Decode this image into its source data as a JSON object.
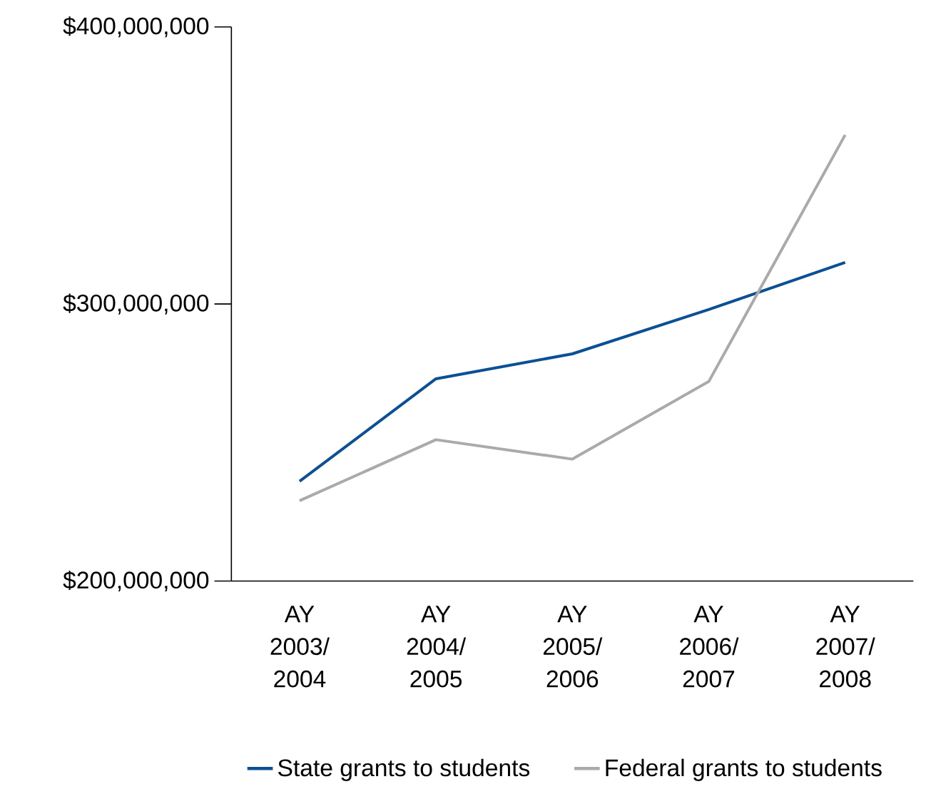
{
  "chart_data": {
    "type": "line",
    "categories": [
      "AY 2003/ 2004",
      "AY 2004/ 2005",
      "AY 2005/ 2006",
      "AY 2006/ 2007",
      "AY 2007/ 2008"
    ],
    "series": [
      {
        "name": "State grants to students",
        "color": "#0b4f94",
        "values": [
          236000000,
          273000000,
          282000000,
          298000000,
          315000000
        ]
      },
      {
        "name": "Federal grants to students",
        "color": "#aaaaaa",
        "values": [
          229000000,
          251000000,
          244000000,
          272000000,
          361000000
        ]
      }
    ],
    "ylim": [
      200000000,
      400000000
    ],
    "yticks": [
      {
        "value": 200000000,
        "label": "$200,000,000"
      },
      {
        "value": 300000000,
        "label": "$300,000,000"
      },
      {
        "value": 400000000,
        "label": "$400,000,000"
      }
    ],
    "grid": false,
    "legend": "bottom",
    "marker": "none",
    "line_style": "solid"
  }
}
